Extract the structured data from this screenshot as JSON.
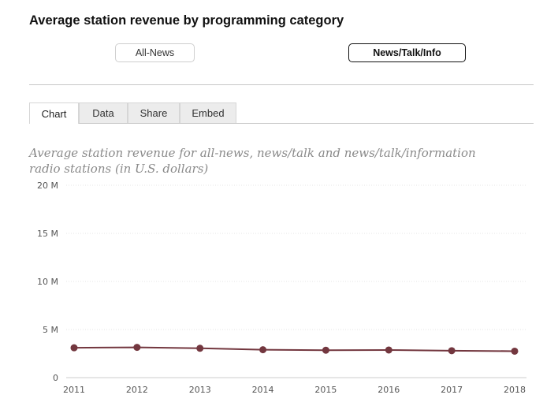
{
  "header": {
    "title": "Average station revenue by programming category"
  },
  "categories": [
    {
      "label": "All-News",
      "active": false
    },
    {
      "label": "News/Talk/Info",
      "active": true
    }
  ],
  "tabs": [
    {
      "label": "Chart",
      "active": true
    },
    {
      "label": "Data",
      "active": false
    },
    {
      "label": "Share",
      "active": false
    },
    {
      "label": "Embed",
      "active": false
    }
  ],
  "colors": {
    "series": "#73373f",
    "grid": "#e6e6e6",
    "axis": "#cccccc"
  },
  "chart_data": {
    "type": "line",
    "subtitle": "Average station revenue for all-news, news/talk and news/talk/information radio stations (in U.S. dollars)",
    "x": [
      "2011",
      "2012",
      "2013",
      "2014",
      "2015",
      "2016",
      "2017",
      "2018"
    ],
    "values": [
      3100000,
      3150000,
      3050000,
      2900000,
      2850000,
      2870000,
      2800000,
      2750000
    ],
    "ylim": [
      0,
      20000000
    ],
    "yticks": [
      0,
      5000000,
      10000000,
      15000000,
      20000000
    ],
    "ytick_labels": [
      "0",
      "5 M",
      "10 M",
      "15 M",
      "20 M"
    ],
    "xlabel": "",
    "ylabel": "",
    "grid": true,
    "legend": "none"
  }
}
